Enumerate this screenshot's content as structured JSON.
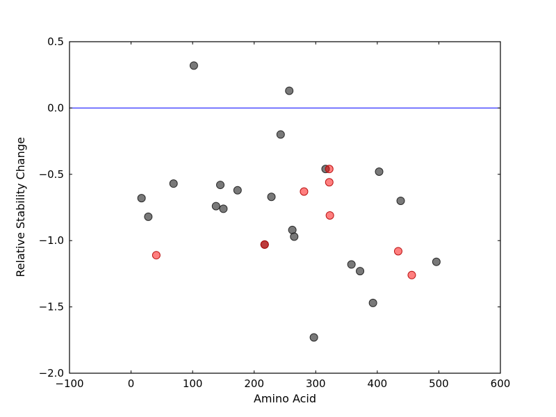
{
  "figure": {
    "background": "#ffffff",
    "border_color": "#000000",
    "text_color": "#000000",
    "axes": {
      "xticks": [
        -100,
        0,
        100,
        200,
        300,
        400,
        500,
        600
      ],
      "yticks": [
        -2.0,
        -1.5,
        -1.0,
        -0.5,
        0.0,
        0.5
      ],
      "xtick_labels": [
        "−100",
        "0",
        "100",
        "200",
        "300",
        "400",
        "500",
        "600"
      ],
      "ytick_labels": [
        "−2.0",
        "−1.5",
        "−1.0",
        "−0.5",
        "0.0",
        "0.5"
      ],
      "tick_length": 4,
      "tick_font_size": 15,
      "grid": "off",
      "legend": "none"
    }
  },
  "chart_data": {
    "type": "scatter",
    "title": "",
    "xlabel": "Amino Acid",
    "ylabel": "Relative Stability Change",
    "xlim": [
      -100,
      600
    ],
    "ylim": [
      -2.0,
      0.5
    ],
    "marker_radius": 5.5,
    "reference_line": {
      "y": 0.0,
      "color": "#0000ff",
      "width": 1
    },
    "series": [
      {
        "name": "gray",
        "color": "#404040",
        "fill_opacity": 0.7,
        "edge": "#1a1a1a",
        "points": [
          [
            17,
            -0.68
          ],
          [
            28,
            -0.82
          ],
          [
            69,
            -0.57
          ],
          [
            102,
            0.32
          ],
          [
            138,
            -0.74
          ],
          [
            145,
            -0.58
          ],
          [
            150,
            -0.76
          ],
          [
            173,
            -0.62
          ],
          [
            217,
            -1.03
          ],
          [
            228,
            -0.67
          ],
          [
            243,
            -0.2
          ],
          [
            257,
            0.13
          ],
          [
            262,
            -0.92
          ],
          [
            265,
            -0.97
          ],
          [
            297,
            -1.73
          ],
          [
            316,
            -0.46
          ],
          [
            358,
            -1.18
          ],
          [
            372,
            -1.23
          ],
          [
            393,
            -1.47
          ],
          [
            403,
            -0.48
          ],
          [
            438,
            -0.7
          ],
          [
            496,
            -1.16
          ]
        ]
      },
      {
        "name": "red",
        "color": "#ff0000",
        "fill_opacity": 0.5,
        "edge": "#b30000",
        "points": [
          [
            41,
            -1.11
          ],
          [
            217,
            -1.03
          ],
          [
            281,
            -0.63
          ],
          [
            322,
            -0.46
          ],
          [
            322,
            -0.56
          ],
          [
            323,
            -0.81
          ],
          [
            434,
            -1.08
          ],
          [
            456,
            -1.26
          ]
        ]
      }
    ]
  }
}
